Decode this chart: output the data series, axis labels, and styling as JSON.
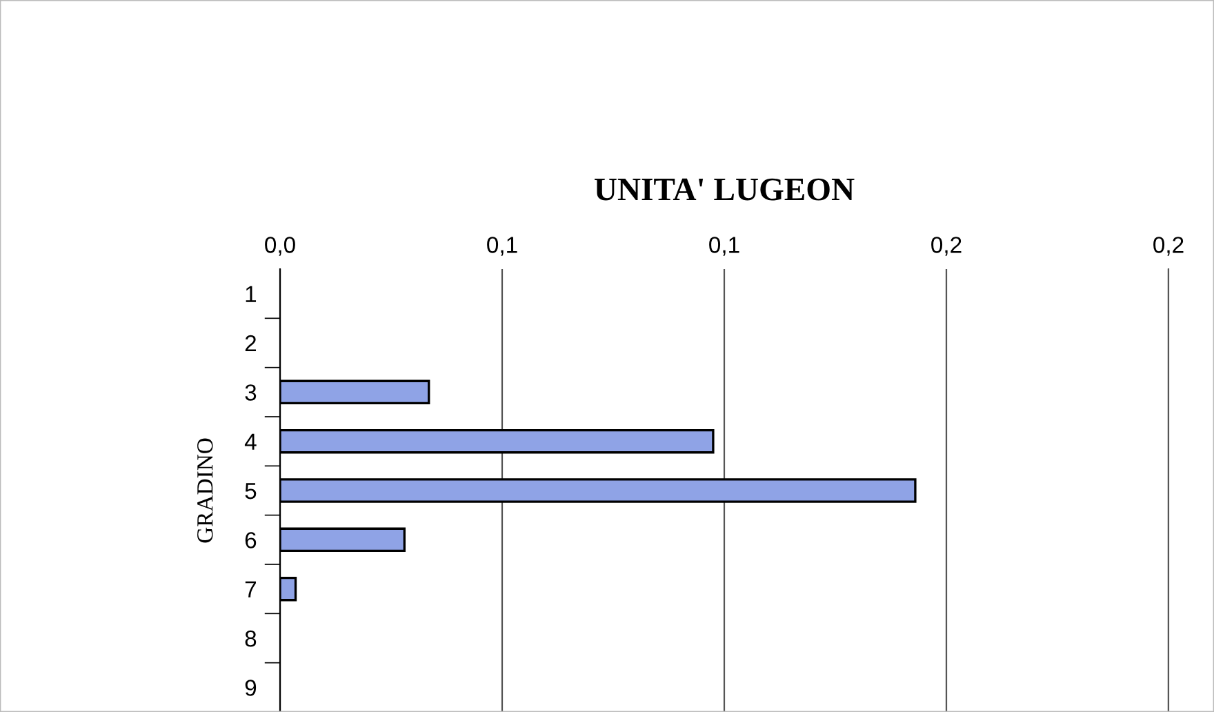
{
  "chart_data": {
    "type": "bar",
    "orientation": "horizontal",
    "title": "UNITA' LUGEON",
    "ylabel": "GRADINO",
    "categories": [
      "1",
      "2",
      "3",
      "4",
      "5",
      "6",
      "7",
      "8",
      "9"
    ],
    "values": [
      null,
      null,
      0.0335,
      0.0975,
      0.143,
      0.028,
      0.0035,
      null,
      null
    ],
    "color": "#8fa3e6",
    "xlim": [
      0,
      0.2
    ],
    "xticks": [
      {
        "value": 0,
        "label": "0,0"
      },
      {
        "value": 0.05,
        "label": "0,1"
      },
      {
        "value": 0.1,
        "label": "0,1"
      },
      {
        "value": 0.15,
        "label": "0,2"
      },
      {
        "value": 0.2,
        "label": "0,2"
      }
    ],
    "grid": "x",
    "legend": false
  }
}
